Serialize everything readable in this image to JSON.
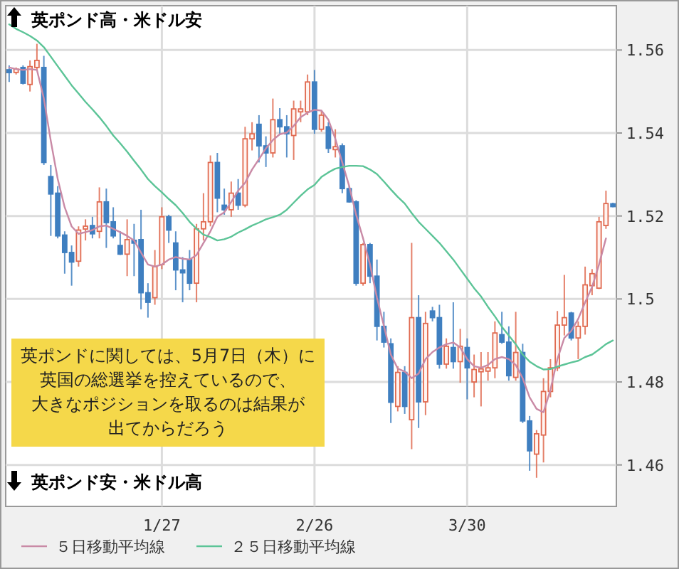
{
  "chart_data": {
    "type": "candlestick",
    "categories": [
      null,
      null,
      null,
      null,
      null,
      null,
      null,
      null,
      null,
      null,
      null,
      null,
      null,
      null,
      null,
      null,
      null,
      null,
      null,
      null,
      null,
      null,
      "1/27",
      null,
      null,
      null,
      null,
      null,
      null,
      null,
      null,
      null,
      null,
      null,
      null,
      null,
      null,
      null,
      null,
      null,
      null,
      null,
      null,
      null,
      "2/26",
      null,
      null,
      null,
      null,
      null,
      null,
      null,
      null,
      null,
      null,
      null,
      null,
      null,
      null,
      null,
      null,
      null,
      null,
      null,
      null,
      null,
      "3/30",
      null,
      null,
      null,
      null,
      null,
      null,
      null,
      null,
      null,
      null,
      null,
      null,
      null,
      null,
      null,
      null,
      null,
      null,
      null,
      null,
      null
    ],
    "ohlc": [
      [
        1.5552,
        1.5563,
        1.5523,
        1.5546
      ],
      [
        1.5546,
        1.5558,
        1.5541,
        1.5554
      ],
      [
        1.5558,
        1.5563,
        1.5517,
        1.552
      ],
      [
        1.5517,
        1.5575,
        1.55,
        1.556
      ],
      [
        1.5558,
        1.5615,
        1.5552,
        1.5575
      ],
      [
        1.5558,
        1.5586,
        1.5323,
        1.5329
      ],
      [
        1.5295,
        1.5323,
        1.5152,
        1.5253
      ],
      [
        1.5255,
        1.5272,
        1.5146,
        1.5152
      ],
      [
        1.5154,
        1.5163,
        1.5061,
        1.5112
      ],
      [
        1.5112,
        1.5129,
        1.5032,
        1.5089
      ],
      [
        1.5091,
        1.5175,
        1.5078,
        1.5166
      ],
      [
        1.5169,
        1.5192,
        1.5141,
        1.5175
      ],
      [
        1.5177,
        1.5198,
        1.5146,
        1.5157
      ],
      [
        1.5163,
        1.5269,
        1.5146,
        1.5234
      ],
      [
        1.5234,
        1.5266,
        1.5123,
        1.5184
      ],
      [
        1.5186,
        1.5221,
        1.5146,
        1.5152
      ],
      [
        1.5129,
        1.5163,
        1.5106,
        1.5108
      ],
      [
        1.5108,
        1.5192,
        1.5055,
        1.5143
      ],
      [
        1.5141,
        1.5181,
        1.5055,
        1.5135
      ],
      [
        1.5143,
        1.5215,
        1.4975,
        1.5015
      ],
      [
        1.5015,
        1.5038,
        1.4955,
        1.4992
      ],
      [
        1.5003,
        1.5118,
        1.4986,
        1.5078
      ],
      [
        1.5083,
        1.5221,
        1.5072,
        1.5198
      ],
      [
        1.5198,
        1.5203,
        1.5135,
        1.5166
      ],
      [
        1.5135,
        1.5163,
        1.5021,
        1.507
      ],
      [
        1.507,
        1.5101,
        1.4992,
        1.5063
      ],
      [
        1.5095,
        1.5118,
        1.5021,
        1.5038
      ],
      [
        1.5038,
        1.5181,
        1.4992,
        1.5169
      ],
      [
        1.5169,
        1.5255,
        1.5141,
        1.5186
      ],
      [
        1.5186,
        1.5346,
        1.5175,
        1.5329
      ],
      [
        1.5329,
        1.5352,
        1.5209,
        1.5243
      ],
      [
        1.5226,
        1.5266,
        1.5203,
        1.5215
      ],
      [
        1.5215,
        1.5283,
        1.5198,
        1.5255
      ],
      [
        1.5255,
        1.5289,
        1.5215,
        1.5226
      ],
      [
        1.5226,
        1.5415,
        1.5221,
        1.5386
      ],
      [
        1.5386,
        1.5426,
        1.5358,
        1.5398
      ],
      [
        1.5421,
        1.5443,
        1.5329,
        1.5369
      ],
      [
        1.5369,
        1.5392,
        1.5318,
        1.5352
      ],
      [
        1.5352,
        1.5483,
        1.5341,
        1.5432
      ],
      [
        1.5432,
        1.546,
        1.5398,
        1.5415
      ],
      [
        1.5415,
        1.5443,
        1.5341,
        1.5398
      ],
      [
        1.5394,
        1.5478,
        1.5335,
        1.5458
      ],
      [
        1.5451,
        1.5478,
        1.5426,
        1.5458
      ],
      [
        1.5451,
        1.5541,
        1.5443,
        1.5523
      ],
      [
        1.5523,
        1.5552,
        1.5398,
        1.5409
      ],
      [
        1.5409,
        1.5455,
        1.5403,
        1.5443
      ],
      [
        1.5415,
        1.5426,
        1.5352,
        1.5363
      ],
      [
        1.536,
        1.5409,
        1.5341,
        1.5367
      ],
      [
        1.5369,
        1.5375,
        1.5255,
        1.5266
      ],
      [
        1.5266,
        1.5272,
        1.5232,
        1.5234
      ],
      [
        1.5234,
        1.5238,
        1.5032,
        1.5038
      ],
      [
        1.5038,
        1.5135,
        1.5032,
        1.5131
      ],
      [
        1.5131,
        1.5135,
        1.5038,
        1.5055
      ],
      [
        1.5055,
        1.5095,
        1.49,
        1.4934
      ],
      [
        1.4934,
        1.4969,
        1.4883,
        1.4896
      ],
      [
        1.4892,
        1.4905,
        1.4701,
        1.4751
      ],
      [
        1.4741,
        1.4838,
        1.4729,
        1.4823
      ],
      [
        1.4823,
        1.4838,
        1.4723,
        1.4741
      ],
      [
        1.4709,
        1.5135,
        1.4638,
        1.4955
      ],
      [
        1.4955,
        1.5009,
        1.4689,
        1.4752
      ],
      [
        1.4752,
        1.4969,
        1.472,
        1.4941
      ],
      [
        1.4971,
        1.4981,
        1.4946,
        1.4955
      ],
      [
        1.4955,
        1.4986,
        1.4832,
        1.4843
      ],
      [
        1.4843,
        1.4905,
        1.4832,
        1.4886
      ],
      [
        1.4883,
        1.4992,
        1.4832,
        1.4849
      ],
      [
        1.4849,
        1.4928,
        1.4798,
        1.4886
      ],
      [
        1.4883,
        1.4905,
        1.4758,
        1.4834
      ],
      [
        1.48,
        1.4866,
        1.4763,
        1.483
      ],
      [
        1.4826,
        1.4872,
        1.4741,
        1.483
      ],
      [
        1.4826,
        1.4872,
        1.4803,
        1.4834
      ],
      [
        1.4834,
        1.4946,
        1.4809,
        1.4918
      ],
      [
        1.4914,
        1.4969,
        1.4892,
        1.4896
      ],
      [
        1.4896,
        1.4934,
        1.4803,
        1.4815
      ],
      [
        1.4811,
        1.4969,
        1.4803,
        1.4871
      ],
      [
        1.4871,
        1.4892,
        1.4701,
        1.4706
      ],
      [
        1.4706,
        1.4718,
        1.4586,
        1.4634
      ],
      [
        1.4626,
        1.4684,
        1.4569,
        1.4675
      ],
      [
        1.4672,
        1.4809,
        1.4606,
        1.4777
      ],
      [
        1.4777,
        1.4855,
        1.4763,
        1.4834
      ],
      [
        1.4834,
        1.4971,
        1.4826,
        1.4937
      ],
      [
        1.4937,
        1.5058,
        1.4912,
        1.4955
      ],
      [
        1.4966,
        1.4969,
        1.49,
        1.4906
      ],
      [
        1.4906,
        1.4946,
        1.4855,
        1.4934
      ],
      [
        1.4934,
        1.5078,
        1.4914,
        1.5034
      ],
      [
        1.5032,
        1.5072,
        1.5009,
        1.5061
      ],
      [
        1.5026,
        1.5198,
        1.5024,
        1.5186
      ],
      [
        1.5177,
        1.5261,
        1.5169,
        1.523
      ],
      [
        1.5227,
        1.5232,
        1.5221,
        1.5225
      ]
    ],
    "series": [
      {
        "name": "５日移動平均線",
        "type": "line",
        "color": "#c98aa6",
        "values": [
          1.5558,
          1.5554,
          1.5552,
          1.5554,
          1.5552,
          1.5483,
          1.5381,
          1.5289,
          1.5221,
          1.5175,
          1.5157,
          1.5161,
          1.5166,
          1.5175,
          1.5177,
          1.5169,
          1.5161,
          1.5152,
          1.5141,
          1.5112,
          1.5083,
          1.5078,
          1.5083,
          1.5095,
          1.5101,
          1.5097,
          1.5095,
          1.5106,
          1.5135,
          1.5163,
          1.5198,
          1.5209,
          1.5234,
          1.5261,
          1.528,
          1.5312,
          1.5337,
          1.5363,
          1.5383,
          1.5397,
          1.5401,
          1.5417,
          1.5438,
          1.5449,
          1.5456,
          1.5454,
          1.5432,
          1.5386,
          1.5329,
          1.5272,
          1.5203,
          1.5146,
          1.5083,
          1.5003,
          1.4935,
          1.4866,
          1.4832,
          1.4825,
          1.4809,
          1.482,
          1.4855,
          1.4872,
          1.4883,
          1.4891,
          1.4895,
          1.4883,
          1.4855,
          1.4838,
          1.4834,
          1.4841,
          1.4855,
          1.486,
          1.4855,
          1.4841,
          1.4809,
          1.4763,
          1.4735,
          1.4727,
          1.4781,
          1.4855,
          1.4906,
          1.4923,
          1.4952,
          1.4992,
          1.5029,
          1.5083,
          1.5146,
          null
        ]
      },
      {
        "name": "２５日移動平均線",
        "type": "line",
        "color": "#5cc497",
        "values": [
          1.5662,
          1.5651,
          1.5643,
          1.5634,
          1.5623,
          1.5607,
          1.5584,
          1.5561,
          1.5538,
          1.5515,
          1.5495,
          1.5475,
          1.5457,
          1.5438,
          1.5417,
          1.5394,
          1.5375,
          1.5355,
          1.5333,
          1.5312,
          1.5289,
          1.5272,
          1.5257,
          1.5241,
          1.5226,
          1.5207,
          1.5186,
          1.5169,
          1.5155,
          1.5149,
          1.5141,
          1.5144,
          1.515,
          1.516,
          1.5168,
          1.5177,
          1.5184,
          1.5192,
          1.5197,
          1.5203,
          1.5215,
          1.5232,
          1.5249,
          1.5264,
          1.5275,
          1.5294,
          1.5305,
          1.5314,
          1.5318,
          1.5321,
          1.5321,
          1.532,
          1.5312,
          1.5301,
          1.5283,
          1.5264,
          1.5246,
          1.523,
          1.5207,
          1.5186,
          1.5169,
          1.5152,
          1.5135,
          1.5115,
          1.5095,
          1.5072,
          1.5049,
          1.5026,
          1.5006,
          1.4981,
          1.4958,
          1.4933,
          1.4912,
          1.4891,
          1.4866,
          1.4849,
          1.4838,
          1.483,
          1.4831,
          1.4837,
          1.4842,
          1.4847,
          1.4851,
          1.486,
          1.4866,
          1.4878,
          1.4891,
          1.49
        ]
      }
    ],
    "ylim": [
      1.45,
      1.57
    ],
    "yticks": [
      1.46,
      1.48,
      1.5,
      1.52,
      1.54,
      1.56
    ],
    "grid": true,
    "legend": "bottom",
    "annotations": [
      "英ポンド高・米ドル安",
      "英ポンド安・米ドル高",
      "英ポンドに関しては、5月7日（木）に",
      "英国の総選挙を控えているので、",
      "大きなポジションを取るのは結果が",
      "出てからだろう"
    ]
  }
}
